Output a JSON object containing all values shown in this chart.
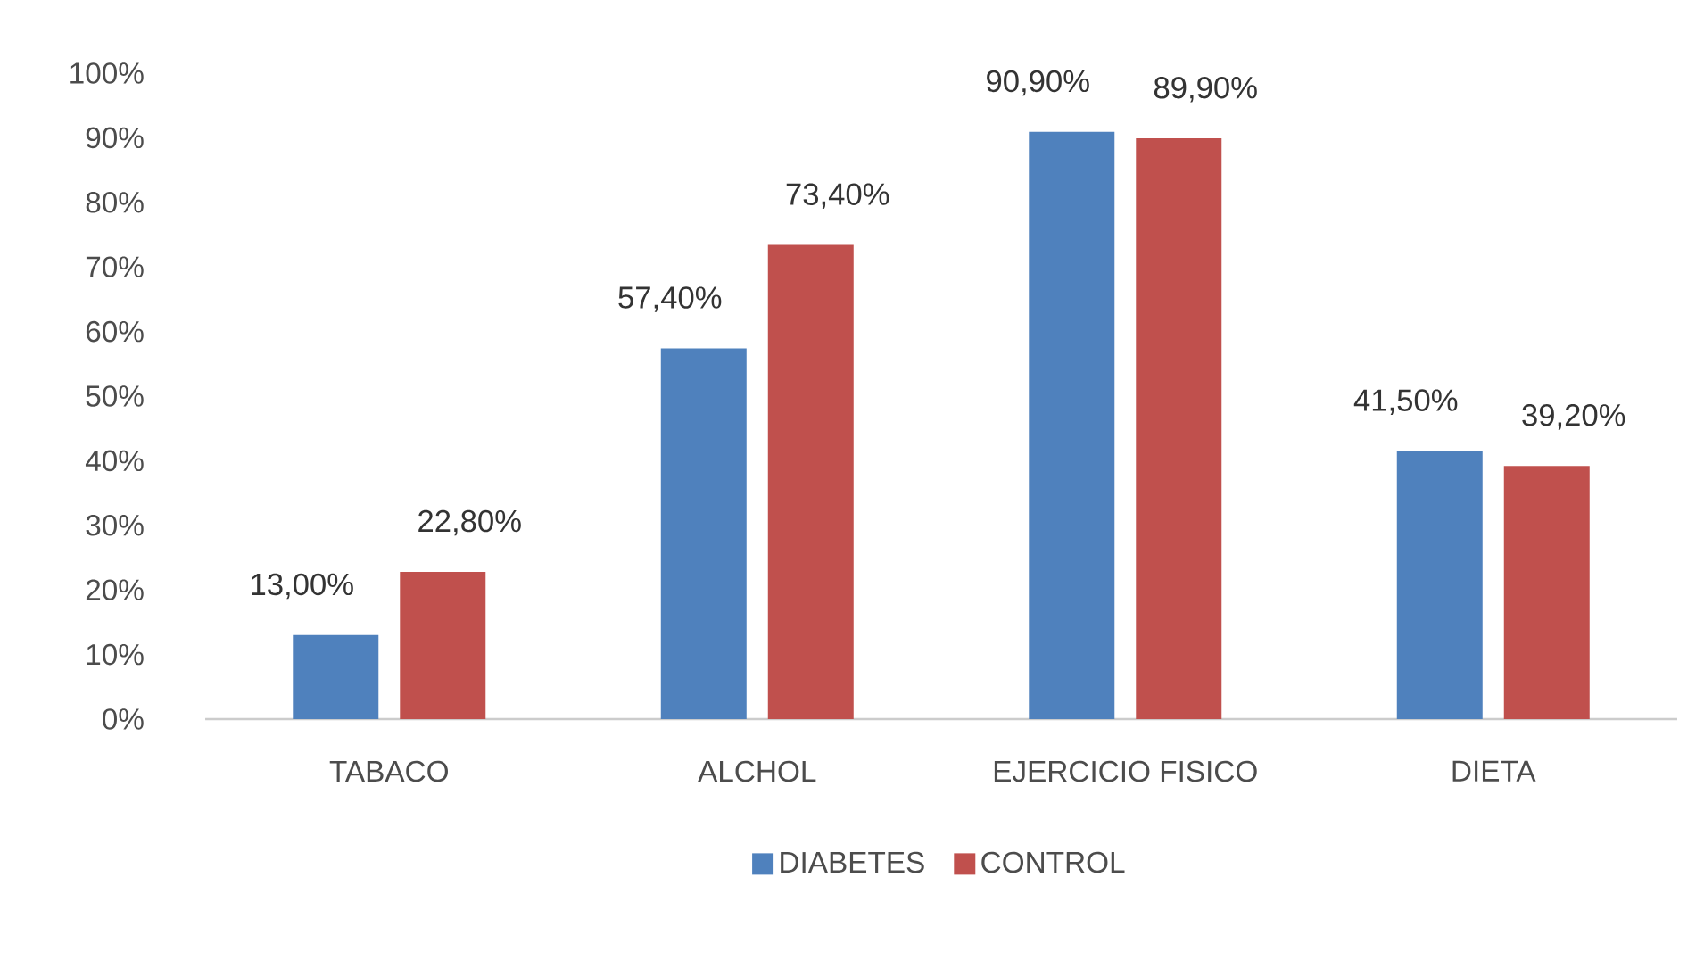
{
  "chart_data": {
    "type": "bar",
    "categories": [
      "TABACO",
      "ALCHOL",
      "EJERCICIO FISICO",
      "DIETA"
    ],
    "series": [
      {
        "name": "DIABETES",
        "color": "#4f81bd",
        "values": [
          13.0,
          57.4,
          90.9,
          41.5
        ],
        "value_labels": [
          "13,00%",
          "57,40%",
          "90,90%",
          "41,50%"
        ]
      },
      {
        "name": "CONTROL",
        "color": "#c0504d",
        "values": [
          22.8,
          73.4,
          89.9,
          39.2
        ],
        "value_labels": [
          "22,80%",
          "73,40%",
          "89,90%",
          "39,20%"
        ]
      }
    ],
    "ylim": [
      0,
      100
    ],
    "yticks": [
      {
        "value": 0,
        "label": "0%"
      },
      {
        "value": 10,
        "label": "10%"
      },
      {
        "value": 20,
        "label": "20%"
      },
      {
        "value": 30,
        "label": "30%"
      },
      {
        "value": 40,
        "label": "40%"
      },
      {
        "value": 50,
        "label": "50%"
      },
      {
        "value": 60,
        "label": "60%"
      },
      {
        "value": 70,
        "label": "70%"
      },
      {
        "value": 80,
        "label": "80%"
      },
      {
        "value": 90,
        "label": "90%"
      },
      {
        "value": 100,
        "label": "100%"
      }
    ],
    "legend": "bottom"
  }
}
